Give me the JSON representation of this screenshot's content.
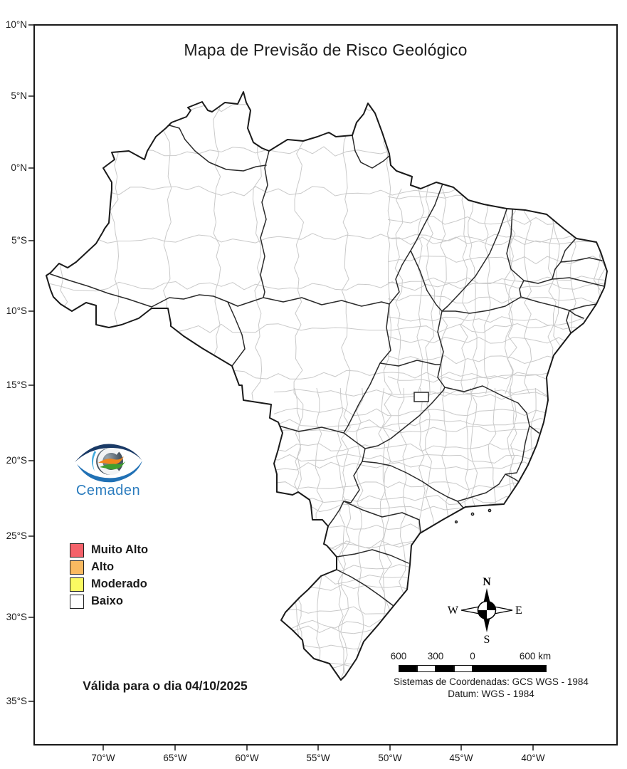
{
  "title": "Mapa de Previsão de Risco Geológico",
  "logo": {
    "caption": "Cemaden"
  },
  "legend": {
    "items": [
      {
        "label": "Muito Alto",
        "color": "#f4626a"
      },
      {
        "label": "Alto",
        "color": "#f9ba61"
      },
      {
        "label": "Moderado",
        "color": "#fafa62"
      },
      {
        "label": "Baixo",
        "color": "#ffffff"
      }
    ]
  },
  "validity": {
    "text": "Válida para o dia 04/10/2025"
  },
  "axes": {
    "lat_ticks": [
      "10°N",
      "5°N",
      "0°N",
      "5°S",
      "10°S",
      "15°S",
      "20°S",
      "25°S",
      "30°S",
      "35°S"
    ],
    "lon_ticks": [
      "70°W",
      "65°W",
      "60°W",
      "55°W",
      "50°W",
      "45°W",
      "40°W"
    ]
  },
  "compass": {
    "north": "N",
    "south": "S",
    "east": "E",
    "west": "W"
  },
  "scale_bar": {
    "labels": [
      "600",
      "300",
      "0",
      "600 km"
    ]
  },
  "crs": {
    "line1": "Sistemas de Coordenadas: GCS WGS - 1984",
    "line2": "Datum: WGS - 1984"
  },
  "map": {
    "colors": {
      "state_border": "#2b2b2b",
      "municipal_border": "#c9c9c9",
      "land_fill": "#ffffff",
      "frame": "#1a1a1a"
    }
  }
}
